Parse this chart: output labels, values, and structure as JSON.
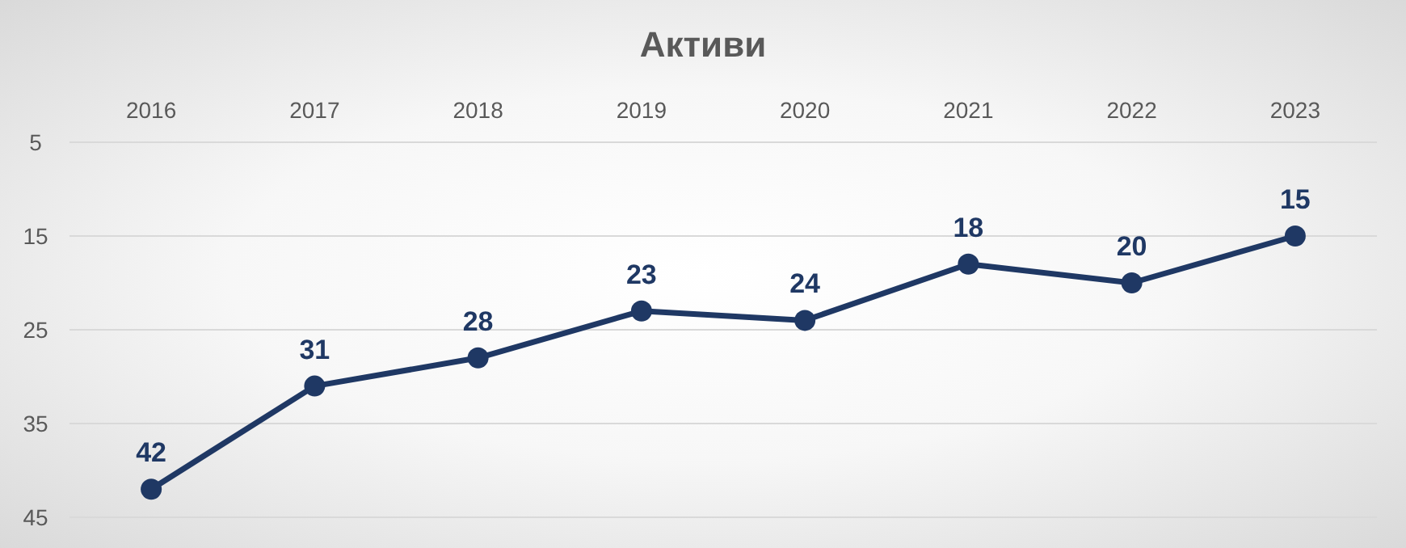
{
  "chart_data": {
    "type": "line",
    "title": "Активи",
    "categories": [
      "2016",
      "2017",
      "2018",
      "2019",
      "2020",
      "2021",
      "2022",
      "2023"
    ],
    "series": [
      {
        "color": "#1f3864",
        "values": [
          42,
          31,
          28,
          23,
          24,
          18,
          20,
          15
        ]
      }
    ],
    "ylim": [
      45,
      5
    ],
    "yticks": [
      5,
      15,
      25,
      35,
      45
    ],
    "grid": "y",
    "marker": "circle",
    "line_style": "solid",
    "data_labels": true
  }
}
